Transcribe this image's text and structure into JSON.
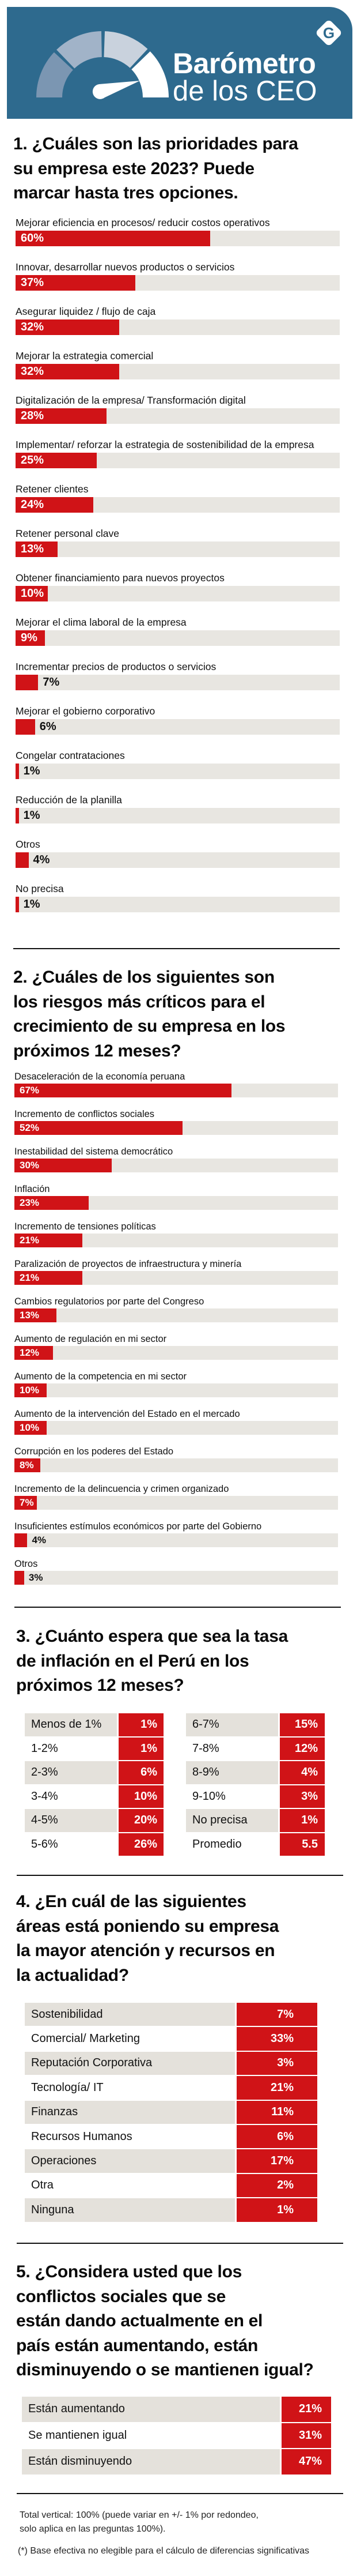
{
  "header": {
    "title_bold": "Barómetro",
    "title_light": "de los CEO",
    "logo_letter": "G"
  },
  "colors": {
    "header_bg": "#2e6a8e",
    "bar_red": "#d01317",
    "track": "#e8e6e1",
    "row_gray": "#e4e1db",
    "gauge_segments": [
      "#7b96b2",
      "#a1b3c8",
      "#c9d2dd",
      "#ffffff"
    ]
  },
  "sections": [
    {
      "title_lines": [
        "1. ¿Cuáles son las prioridades para",
        "su empresa este 2023? Puede",
        "marcar hasta tres opciones."
      ]
    },
    {
      "title_lines": [
        "2. ¿Cuáles de los siguientes son",
        "los riesgos más críticos para el",
        "crecimiento de su empresa en los",
        "próximos 12 meses?"
      ]
    },
    {
      "title_lines": [
        "3. ¿Cuánto espera que sea la tasa",
        "de inflación en el Perú en los",
        "próximos 12 meses?"
      ]
    },
    {
      "title_lines": [
        "4. ¿En cuál de las siguientes",
        "áreas está poniendo su empresa",
        "la mayor atención y recursos en",
        "la actualidad?"
      ]
    },
    {
      "title_lines": [
        "5. ¿Considera usted que los",
        "conflictos sociales que se",
        "están dando actualmente en el",
        "país están aumentando, están",
        "disminuyendo o se mantienen igual?"
      ]
    }
  ],
  "chart_data": [
    {
      "type": "bar",
      "orientation": "horizontal",
      "unit": "%",
      "xlim": [
        0,
        100
      ],
      "categories": [
        "Mejorar eficiencia en procesos/ reducir costos operativos",
        "Innovar, desarrollar nuevos productos o servicios",
        "Asegurar liquidez / flujo de caja",
        "Mejorar la estrategia comercial",
        "Digitalización de la empresa/ Transformación digital",
        "Implementar/ reforzar la estrategia de sostenibilidad de la empresa",
        "Retener clientes",
        "Retener personal clave",
        "Obtener financiamiento para nuevos proyectos",
        "Mejorar el clima laboral de la empresa",
        "Incrementar precios de productos o servicios",
        "Mejorar el gobierno corporativo",
        "Congelar contrataciones",
        "Reducción de la planilla",
        "Otros",
        "No precisa"
      ],
      "values": [
        60,
        37,
        32,
        32,
        28,
        25,
        24,
        13,
        10,
        9,
        7,
        6,
        1,
        1,
        4,
        1
      ]
    },
    {
      "type": "bar",
      "orientation": "horizontal",
      "unit": "%",
      "xlim": [
        0,
        100
      ],
      "categories": [
        "Desaceleración de la economía peruana",
        "Incremento de conflictos sociales",
        "Inestabilidad del sistema democrático",
        "Inflación",
        "Incremento de tensiones políticas",
        "Paralización de proyectos de infraestructura y minería",
        "Cambios regulatorios por parte del Congreso",
        "Aumento de regulación en mi sector",
        "Aumento de la competencia en mi sector",
        "Aumento de la intervención del Estado en el mercado",
        "Corrupción en los poderes del Estado",
        "Incremento de la delincuencia y crimen organizado",
        "Insuficientes estímulos económicos por parte del Gobierno",
        "Otros"
      ],
      "values": [
        67,
        52,
        30,
        23,
        21,
        21,
        13,
        12,
        10,
        10,
        8,
        7,
        4,
        3
      ]
    },
    {
      "type": "table",
      "left": [
        [
          "Menos de 1%",
          "1%"
        ],
        [
          "1-2%",
          "1%"
        ],
        [
          "2-3%",
          "6%"
        ],
        [
          "3-4%",
          "10%"
        ],
        [
          "4-5%",
          "20%"
        ],
        [
          "5-6%",
          "26%"
        ]
      ],
      "right": [
        [
          "6-7%",
          "15%"
        ],
        [
          "7-8%",
          "12%"
        ],
        [
          "8-9%",
          "4%"
        ],
        [
          "9-10%",
          "3%"
        ],
        [
          "No precisa",
          "1%"
        ],
        [
          "Promedio",
          "5.5"
        ]
      ]
    },
    {
      "type": "table",
      "rows": [
        [
          "Sostenibilidad",
          "7%"
        ],
        [
          "Comercial/ Marketing",
          "33%"
        ],
        [
          "Reputación Corporativa",
          "3%"
        ],
        [
          "Tecnología/ IT",
          "21%"
        ],
        [
          "Finanzas",
          "11%"
        ],
        [
          "Recursos Humanos",
          "6%"
        ],
        [
          "Operaciones",
          "17%"
        ],
        [
          "Otra",
          "2%"
        ],
        [
          "Ninguna",
          "1%"
        ]
      ]
    },
    {
      "type": "table",
      "rows": [
        [
          "Están aumentando",
          "21%"
        ],
        [
          "Se mantienen igual",
          "31%"
        ],
        [
          "Están disminuyendo",
          "47%"
        ]
      ]
    }
  ],
  "footnotes": [
    "Total vertical: 100% (puede variar en +/- 1% por redondeo,",
    "solo aplica en las preguntas 100%).",
    "(*) Base efectiva no elegible para el cálculo de diferencias significativas"
  ]
}
